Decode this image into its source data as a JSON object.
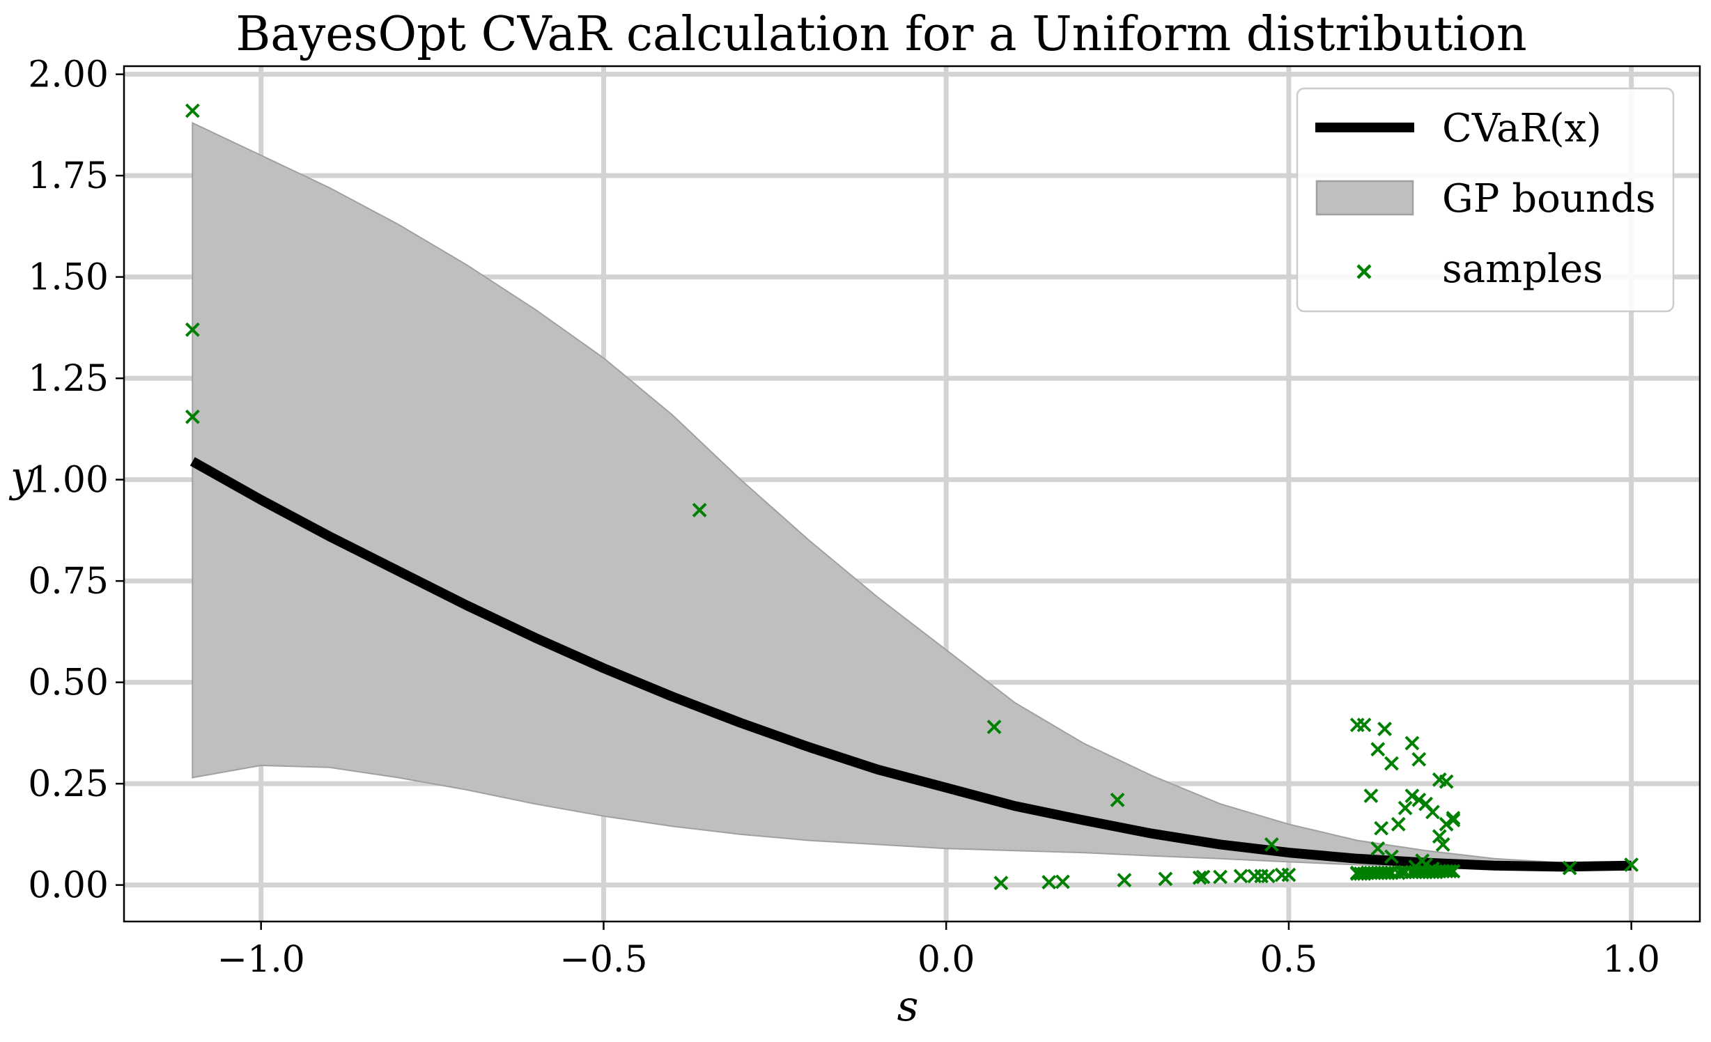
{
  "chart_data": {
    "type": "line",
    "title": "BayesOpt CVaR calculation for a Uniform distribution",
    "xlabel": "s",
    "ylabel": "y",
    "xlim": [
      -1.2,
      1.1
    ],
    "ylim": [
      -0.09,
      2.02
    ],
    "xticks": [
      -1.0,
      -0.5,
      0.0,
      0.5,
      1.0
    ],
    "xtick_labels": [
      "−1.0",
      "−0.5",
      "0.0",
      "0.5",
      "1.0"
    ],
    "yticks": [
      0.0,
      0.25,
      0.5,
      0.75,
      1.0,
      1.25,
      1.5,
      1.75,
      2.0
    ],
    "ytick_labels": [
      "0.00",
      "0.25",
      "0.50",
      "0.75",
      "1.00",
      "1.25",
      "1.50",
      "1.75",
      "2.00"
    ],
    "grid": true,
    "legend_position": "top-right",
    "legend": [
      "CVaR(x)",
      "GP bounds",
      "samples"
    ],
    "colors": {
      "cvar": "#000000",
      "gp_fill": "#bfbfbf",
      "gp_edge": "#a0a0a0",
      "samples": "#008000"
    },
    "cvar": {
      "x": [
        -1.1,
        -1.0,
        -0.9,
        -0.8,
        -0.7,
        -0.6,
        -0.5,
        -0.4,
        -0.3,
        -0.2,
        -0.1,
        0.0,
        0.1,
        0.2,
        0.3,
        0.4,
        0.5,
        0.6,
        0.7,
        0.8,
        0.9,
        1.0
      ],
      "y": [
        1.045,
        0.95,
        0.86,
        0.775,
        0.69,
        0.61,
        0.535,
        0.465,
        0.4,
        0.34,
        0.285,
        0.24,
        0.195,
        0.16,
        0.127,
        0.1,
        0.08,
        0.065,
        0.055,
        0.048,
        0.045,
        0.048
      ]
    },
    "gp_bounds": {
      "x": [
        -1.1,
        -1.0,
        -0.9,
        -0.8,
        -0.7,
        -0.6,
        -0.5,
        -0.4,
        -0.3,
        -0.2,
        -0.1,
        0.0,
        0.1,
        0.2,
        0.3,
        0.4,
        0.5,
        0.6,
        0.7,
        0.8,
        0.9,
        1.0
      ],
      "upper": [
        1.88,
        1.8,
        1.72,
        1.63,
        1.53,
        1.42,
        1.3,
        1.16,
        1.0,
        0.85,
        0.71,
        0.58,
        0.45,
        0.35,
        0.27,
        0.2,
        0.15,
        0.11,
        0.085,
        0.065,
        0.055,
        0.05
      ],
      "lower": [
        0.265,
        0.295,
        0.29,
        0.265,
        0.235,
        0.2,
        0.17,
        0.145,
        0.125,
        0.11,
        0.1,
        0.09,
        0.085,
        0.08,
        0.072,
        0.065,
        0.057,
        0.05,
        0.045,
        0.042,
        0.042,
        0.045
      ]
    },
    "samples": {
      "x": [
        -1.1,
        -1.1,
        -1.1,
        -0.36,
        0.07,
        0.08,
        0.15,
        0.17,
        0.25,
        0.26,
        0.32,
        0.37,
        0.375,
        0.4,
        0.43,
        0.45,
        0.46,
        0.47,
        0.475,
        0.49,
        0.5,
        0.6,
        0.605,
        0.61,
        0.615,
        0.62,
        0.625,
        0.63,
        0.635,
        0.64,
        0.645,
        0.65,
        0.66,
        0.665,
        0.67,
        0.68,
        0.685,
        0.69,
        0.695,
        0.7,
        0.705,
        0.71,
        0.715,
        0.72,
        0.725,
        0.73,
        0.735,
        0.74,
        0.6,
        0.61,
        0.62,
        0.63,
        0.635,
        0.64,
        0.65,
        0.66,
        0.67,
        0.68,
        0.69,
        0.7,
        0.71,
        0.72,
        0.73,
        0.74,
        0.6,
        0.63,
        0.65,
        0.68,
        0.69,
        0.7,
        0.72,
        0.725,
        0.73,
        0.74,
        0.71,
        0.685,
        0.695,
        0.91,
        1.0
      ],
      "y": [
        1.91,
        1.37,
        1.155,
        0.925,
        0.39,
        0.005,
        0.007,
        0.008,
        0.21,
        0.012,
        0.015,
        0.018,
        0.02,
        0.02,
        0.022,
        0.022,
        0.022,
        0.022,
        0.1,
        0.025,
        0.025,
        0.028,
        0.028,
        0.028,
        0.03,
        0.03,
        0.03,
        0.03,
        0.03,
        0.03,
        0.03,
        0.03,
        0.03,
        0.032,
        0.032,
        0.032,
        0.032,
        0.032,
        0.032,
        0.032,
        0.032,
        0.032,
        0.032,
        0.034,
        0.034,
        0.034,
        0.034,
        0.034,
        0.395,
        0.395,
        0.22,
        0.335,
        0.14,
        0.385,
        0.3,
        0.15,
        0.19,
        0.35,
        0.31,
        0.2,
        0.18,
        0.26,
        0.255,
        0.16,
        0.03,
        0.09,
        0.07,
        0.22,
        0.21,
        0.05,
        0.12,
        0.1,
        0.15,
        0.165,
        0.04,
        0.045,
        0.06,
        0.042,
        0.05
      ]
    }
  }
}
